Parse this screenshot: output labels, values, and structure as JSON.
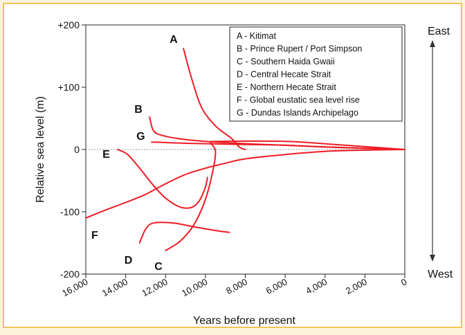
{
  "chart_data": {
    "type": "line",
    "xlabel": "Years before present",
    "ylabel": "Relative sea level (m)",
    "xlim": [
      16000,
      0
    ],
    "ylim": [
      -200,
      200
    ],
    "x_ticks": [
      "16,000",
      "14,000",
      "12,000",
      "10,000",
      "8,000",
      "6,000",
      "4,000",
      "2,000",
      "0"
    ],
    "y_ticks": [
      "+200",
      "+100",
      "0",
      "-100",
      "-200"
    ],
    "direction_labels": {
      "top": "East",
      "bottom": "West"
    },
    "legend_position": "top-right",
    "line_color": "#ee1c24",
    "series": [
      {
        "name": "A - Kitimat",
        "letter": "A",
        "points": [
          [
            11100,
            162
          ],
          [
            10700,
            115
          ],
          [
            10200,
            68
          ],
          [
            9500,
            38
          ],
          [
            8700,
            18
          ],
          [
            8300,
            4
          ],
          [
            8000,
            0
          ]
        ]
      },
      {
        "name": "B - Prince Rupert / Port Simpson",
        "letter": "B",
        "points": [
          [
            12800,
            52
          ],
          [
            12600,
            30
          ],
          [
            12100,
            22
          ],
          [
            11000,
            16
          ],
          [
            9500,
            12
          ],
          [
            7000,
            8
          ],
          [
            3000,
            3
          ],
          [
            0,
            0
          ]
        ]
      },
      {
        "name": "C - Southern Haida Gwaii",
        "letter": "C",
        "points": [
          [
            12000,
            -162
          ],
          [
            11300,
            -148
          ],
          [
            10600,
            -122
          ],
          [
            10000,
            -80
          ],
          [
            9600,
            -30
          ],
          [
            9500,
            -2
          ],
          [
            9700,
            10
          ],
          [
            9400,
            13
          ],
          [
            6000,
            13
          ],
          [
            3500,
            8
          ],
          [
            0,
            0
          ]
        ]
      },
      {
        "name": "D - Central Hecate Strait",
        "letter": "D",
        "points": [
          [
            13300,
            -150
          ],
          [
            13000,
            -128
          ],
          [
            12600,
            -118
          ],
          [
            11600,
            -118
          ],
          [
            10600,
            -124
          ],
          [
            9500,
            -130
          ],
          [
            8800,
            -133
          ]
        ]
      },
      {
        "name": "E - Northern Hecate Strait",
        "letter": "E",
        "points": [
          [
            14400,
            0
          ],
          [
            13900,
            -8
          ],
          [
            13300,
            -30
          ],
          [
            12600,
            -58
          ],
          [
            12000,
            -78
          ],
          [
            11300,
            -92
          ],
          [
            10700,
            -93
          ],
          [
            10300,
            -82
          ],
          [
            10000,
            -60
          ],
          [
            9900,
            -45
          ]
        ]
      },
      {
        "name": "F - Global eustatic sea level rise",
        "letter": "F",
        "points": [
          [
            16000,
            -110
          ],
          [
            15000,
            -97
          ],
          [
            14000,
            -85
          ],
          [
            13000,
            -72
          ],
          [
            12000,
            -55
          ],
          [
            11000,
            -40
          ],
          [
            10000,
            -30
          ],
          [
            9000,
            -22
          ],
          [
            8000,
            -15
          ],
          [
            6000,
            -8
          ],
          [
            4000,
            -3
          ],
          [
            2000,
            -1
          ],
          [
            0,
            0
          ]
        ]
      },
      {
        "name": "G - Dundas Islands Archipelago",
        "letter": "G",
        "points": [
          [
            12700,
            12
          ],
          [
            11000,
            10
          ],
          [
            9500,
            9
          ],
          [
            8000,
            8
          ],
          [
            6000,
            7
          ],
          [
            4000,
            4
          ],
          [
            2000,
            2
          ],
          [
            0,
            0
          ]
        ]
      }
    ]
  }
}
